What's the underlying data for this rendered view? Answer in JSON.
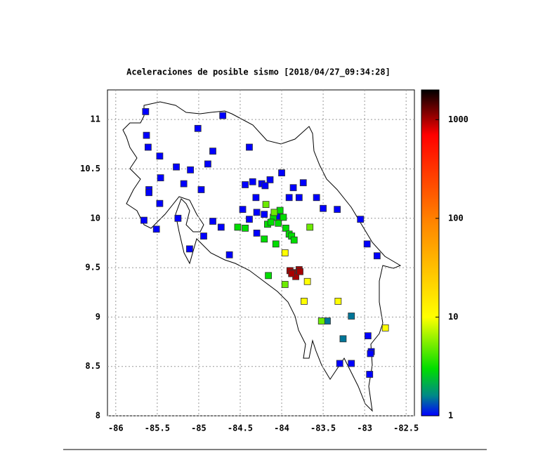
{
  "chart_data": {
    "type": "scatter",
    "title": "Aceleraciones de posible sismo [2018/04/27_09:34:28]",
    "x": [
      -85.64,
      -85.63,
      -85.61,
      -85.47,
      -85.46,
      -85.6,
      -85.6,
      -85.47,
      -85.66,
      -85.51,
      -85.1,
      -85.27,
      -85.18,
      -84.97,
      -85.01,
      -84.71,
      -84.83,
      -84.89,
      -85.25,
      -85.11,
      -84.94,
      -84.83,
      -84.73,
      -84.63,
      -84.39,
      -84.44,
      -84.35,
      -84.24,
      -84.14,
      -84.0,
      -84.2,
      -83.86,
      -83.74,
      -83.91,
      -83.79,
      -83.58,
      -83.5,
      -83.33,
      -84.31,
      -84.47,
      -84.39,
      -84.3,
      -84.3,
      -84.21,
      -84.06,
      -83.05,
      -82.97,
      -82.85,
      -82.96,
      -82.92,
      -82.93,
      -82.94,
      -83.16,
      -83.3,
      -83.26,
      -83.45,
      -83.16,
      -84.53,
      -84.44,
      -84.16,
      -84.21,
      -84.17,
      -84.04,
      -83.98,
      -83.95,
      -83.91,
      -83.88,
      -83.85,
      -84.07,
      -84.1,
      -84.13,
      -84.02,
      -83.52,
      -83.96,
      -84.19,
      -84.09,
      -83.66,
      -83.96,
      -83.69,
      -83.73,
      -83.32,
      -82.75,
      -83.9,
      -83.85,
      -83.79,
      -83.83,
      -83.88,
      -83.78
    ],
    "y": [
      11.08,
      10.84,
      10.72,
      10.63,
      10.41,
      10.29,
      10.26,
      10.15,
      9.98,
      9.89,
      10.49,
      10.52,
      10.35,
      10.29,
      10.91,
      11.04,
      10.68,
      10.55,
      10.0,
      9.69,
      9.82,
      9.97,
      9.91,
      9.63,
      10.72,
      10.34,
      10.37,
      10.35,
      10.39,
      10.46,
      10.33,
      10.31,
      10.36,
      10.21,
      10.21,
      10.21,
      10.1,
      10.09,
      10.21,
      10.09,
      9.99,
      10.06,
      9.85,
      10.04,
      10.02,
      9.99,
      9.74,
      9.62,
      8.81,
      8.65,
      8.63,
      8.42,
      8.53,
      8.53,
      8.78,
      8.96,
      9.01,
      9.91,
      9.9,
      9.42,
      9.79,
      9.94,
      9.95,
      10.01,
      9.9,
      9.84,
      9.82,
      9.78,
      9.74,
      10.01,
      9.96,
      10.08,
      8.96,
      9.33,
      10.14,
      10.06,
      9.91,
      9.65,
      9.36,
      9.16,
      9.16,
      8.89,
      9.47,
      9.45,
      9.48,
      9.41,
      9.44,
      9.46
    ],
    "values": [
      1,
      1,
      1,
      1,
      1,
      1,
      1,
      1,
      1,
      1,
      1,
      1,
      1,
      1,
      1,
      1,
      1,
      1,
      1,
      1,
      1,
      1,
      1,
      1,
      1,
      1,
      1,
      1,
      1,
      1,
      1,
      1,
      1,
      1,
      1,
      1,
      1,
      1,
      1,
      1,
      1,
      1,
      1,
      1,
      1,
      1,
      1,
      1,
      1,
      1,
      1,
      1,
      1,
      1,
      1.5,
      1.5,
      1.5,
      3,
      3,
      3,
      3,
      3,
      3,
      3,
      3,
      3,
      3,
      3,
      3,
      3,
      3,
      3,
      5,
      5,
      5,
      5,
      5,
      10,
      10,
      10,
      10,
      10,
      1000,
      1000,
      1000,
      1000,
      1000,
      1000
    ],
    "xlim": [
      -86.1,
      -82.4
    ],
    "xticks": [
      -86,
      -85.5,
      -85,
      -84.5,
      -84,
      -83.5,
      -83,
      -82.5
    ],
    "ylim": [
      8,
      11.3
    ],
    "yticks": [
      8,
      8.5,
      9,
      9.5,
      10,
      10.5,
      11
    ],
    "grid": true,
    "colorbar": {
      "log": true,
      "lim": [
        1,
        2000
      ],
      "ticks": [
        1,
        10,
        100,
        1000
      ],
      "stops": [
        {
          "value": 1,
          "color": "#0000ff"
        },
        {
          "value": 1.6,
          "color": "#008888"
        },
        {
          "value": 3,
          "color": "#00dd00"
        },
        {
          "value": 10,
          "color": "#ffff00"
        },
        {
          "value": 100,
          "color": "#ff8000"
        },
        {
          "value": 700,
          "color": "#ff0000"
        },
        {
          "value": 2000,
          "color": "#000000"
        }
      ]
    }
  }
}
